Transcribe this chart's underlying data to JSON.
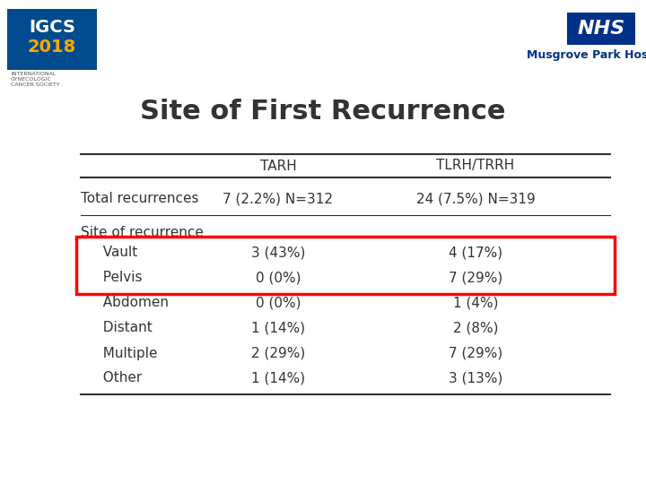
{
  "title": "Site of First Recurrence",
  "col_headers": [
    "",
    "TARH",
    "TLRH/TRRH"
  ],
  "rows": [
    [
      "Total recurrences",
      "7 (2.2%) N=312",
      "24 (7.5%) N=319"
    ],
    [
      "Site of recurrence",
      "",
      ""
    ],
    [
      "  Vault",
      "3 (43%)",
      "4 (17%)"
    ],
    [
      "  Pelvis",
      "0 (0%)",
      "7 (29%)"
    ],
    [
      "  Abdomen",
      "0 (0%)",
      "1 (4%)"
    ],
    [
      "  Distant",
      "1 (14%)",
      "2 (8%)"
    ],
    [
      "  Multiple",
      "2 (29%)",
      "7 (29%)"
    ],
    [
      "  Other",
      "1 (14%)",
      "3 (13%)"
    ]
  ],
  "highlight_rows": [
    2,
    3
  ],
  "highlight_border_color": "red",
  "bg_color": "#ffffff",
  "header_line_color": "#333333",
  "text_color": "#333333",
  "title_fontsize": 22,
  "header_fontsize": 11,
  "row_fontsize": 11,
  "igcs_box_color": "#004B8D",
  "igcs_year_color": "#F7A800",
  "nhs_box_color": "#003087",
  "musgrove_color": "#003087"
}
